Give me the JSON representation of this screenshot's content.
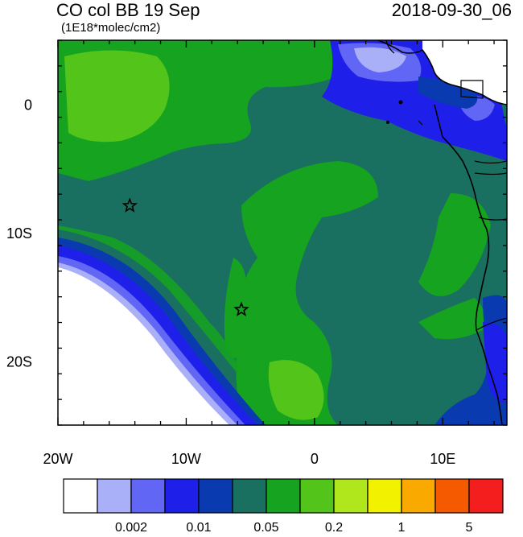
{
  "title": "CO col BB 19 Sep",
  "subtitle": "(1E18*molec/cm2)",
  "datetime": "2018-09-30_06",
  "x_ticks": [
    {
      "value": -20,
      "label": "20W"
    },
    {
      "value": -10,
      "label": "10W"
    },
    {
      "value": 0,
      "label": "0"
    },
    {
      "value": 10,
      "label": "10E"
    }
  ],
  "y_ticks": [
    {
      "value": 0,
      "label": "0"
    },
    {
      "value": -10,
      "label": "10S"
    },
    {
      "value": -20,
      "label": "20S"
    }
  ],
  "extent": {
    "lon": [
      -20,
      15
    ],
    "lat": [
      -25,
      5
    ]
  },
  "colorbar": {
    "colors": [
      "#ffffff",
      "#aab0f7",
      "#6266f5",
      "#1f1fea",
      "#0a3ab0",
      "#1a7060",
      "#15a320",
      "#52c41a",
      "#b0e61c",
      "#f2f200",
      "#f9a900",
      "#f65a00",
      "#f41e1e"
    ],
    "labels": [
      "0.002",
      "0.01",
      "0.05",
      "0.2",
      "1",
      "5"
    ]
  },
  "markers": [
    {
      "lon": -14.4,
      "lat": -7.9,
      "symbol": "star"
    },
    {
      "lon": -5.7,
      "lat": -16.0,
      "symbol": "star"
    }
  ]
}
